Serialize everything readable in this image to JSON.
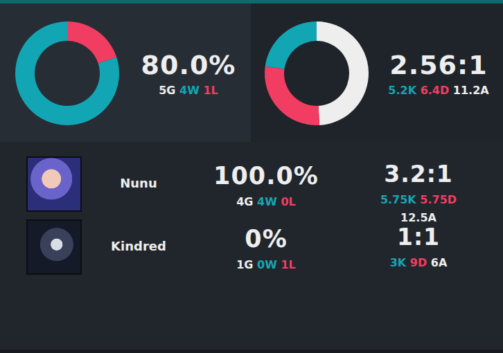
{
  "chart_data": [
    {
      "type": "donut",
      "summary": "80.0%",
      "games": "5G",
      "values": [
        4,
        1
      ],
      "value_labels": [
        "4W",
        "1L"
      ],
      "colors": [
        "#12a6b4",
        "#f23d62"
      ]
    },
    {
      "type": "donut",
      "summary": "2.56:1",
      "values": [
        5.2,
        6.4,
        11.2
      ],
      "value_labels": [
        "5.2K",
        "6.4D",
        "11.2A"
      ],
      "colors": [
        "#12a6b4",
        "#f23d62",
        "#eeeeee"
      ]
    }
  ],
  "champions": [
    {
      "name": "Nunu",
      "win_rate": "100.0%",
      "games": "4G",
      "wins": "4W",
      "losses": "0L",
      "kda": "3.2:1",
      "kills": "5.75K",
      "deaths": "5.75D",
      "assists": "12.5A"
    },
    {
      "name": "Kindred",
      "win_rate": "0%",
      "games": "1G",
      "wins": "0W",
      "losses": "1L",
      "kda": "1:1",
      "kills": "3K",
      "deaths": "9D",
      "assists": "6A"
    }
  ]
}
